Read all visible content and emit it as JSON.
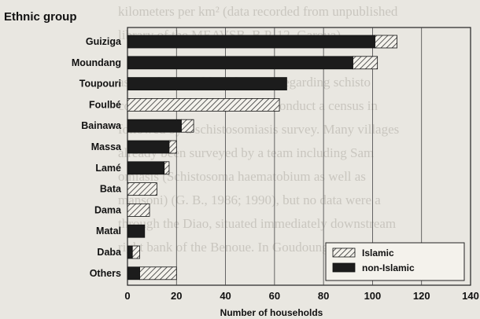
{
  "background_text": [
    "kilometers per km² (data recorded from unpublished",
    "library of the MEAVSB, B.P. 12, Garoua).",
    "",
    "assess the actual health status regarding schisto",
    "considered necessary first to conduct a census in",
    "followed by a schistosomiasis survey. Many villages",
    "already been surveyed by a team including Sam",
    "omiasis (Schistosoma haematobium as well as",
    "mansoni) (G. B., 1986; 1990), but no data were a",
    "through the Diao, situated immediately downstream",
    "right bank of the Benoue. In Goudoungo irrigation s"
  ],
  "chart_data": {
    "type": "bar",
    "orientation": "horizontal",
    "stacked": true,
    "title": "Ethnic group",
    "xlabel": "Number of households",
    "ylabel": "Ethnic group",
    "xlim": [
      0,
      140
    ],
    "xticks": [
      0,
      20,
      40,
      60,
      80,
      100,
      120,
      140
    ],
    "grid": true,
    "legend_placement": "bottom-right",
    "categories": [
      "Guiziga",
      "Moundang",
      "Toupouri",
      "Foulbé",
      "Bainawa",
      "Massa",
      "Lamé",
      "Bata",
      "Dama",
      "Matal",
      "Daba",
      "Others"
    ],
    "series": [
      {
        "name": "non-Islamic",
        "values": [
          101,
          92,
          65,
          0,
          22,
          17,
          15,
          0,
          0,
          7,
          2,
          5
        ],
        "color": "#1c1c1c",
        "pattern": "solid"
      },
      {
        "name": "Islamic",
        "values": [
          9,
          10,
          0,
          62,
          5,
          3,
          2,
          12,
          9,
          0,
          3,
          15
        ],
        "color": "#ffffff",
        "pattern": "hatched"
      }
    ],
    "legend": [
      {
        "label": "Islamic",
        "series": "Islamic"
      },
      {
        "label": "non-Islamic",
        "series": "non-Islamic"
      }
    ]
  }
}
